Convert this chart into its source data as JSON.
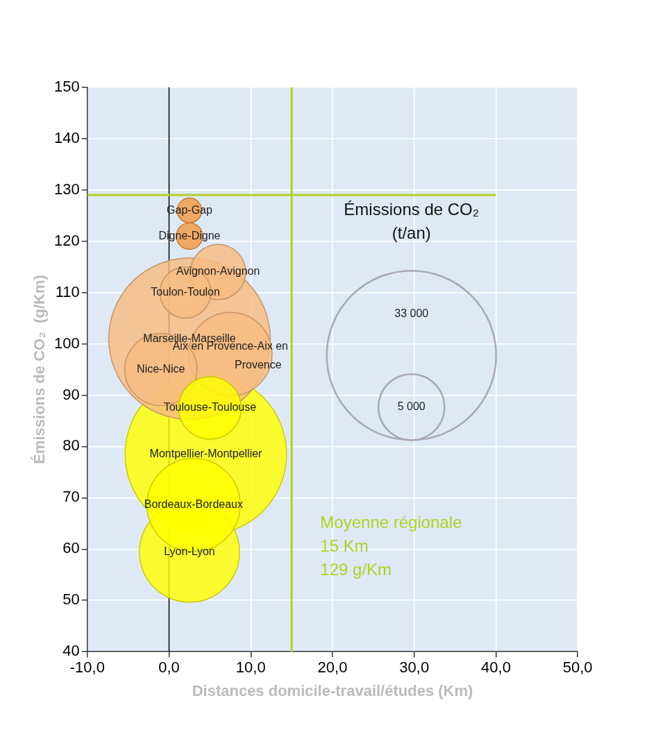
{
  "chart_data": {
    "type": "bubble",
    "xlabel": "Distances domicile-travail/études (Km)",
    "ylabel": "Émissions de CO₂  (g/Km)",
    "legend_title": "Émissions de CO₂\n(t/an)",
    "series": [
      {
        "name": "Gap-Gap",
        "color": "#f39a40",
        "x": [
          2.5
        ],
        "values": [
          126
        ],
        "sizes": [
          700
        ]
      },
      {
        "name": "Digne-Digne",
        "color": "#f39a40",
        "x": [
          2.5
        ],
        "values": [
          121
        ],
        "sizes": [
          800
        ]
      },
      {
        "name": "Avignon-Avignon",
        "color": "#f7bc80",
        "x": [
          6
        ],
        "values": [
          114
        ],
        "sizes": [
          3500
        ]
      },
      {
        "name": "Toulon-Toulon",
        "color": "#f7bc80",
        "x": [
          2
        ],
        "values": [
          110
        ],
        "sizes": [
          3000
        ]
      },
      {
        "name": "Marseille-Marseille",
        "color": "#f7bc80",
        "x": [
          2.5
        ],
        "values": [
          101
        ],
        "sizes": [
          30000
        ]
      },
      {
        "name": "Aix en Provence-Aix en\nProvence",
        "color": "#f7bc80",
        "x": [
          7.5
        ],
        "values": [
          98
        ],
        "sizes": [
          8000
        ]
      },
      {
        "name": "Nice-Nice",
        "color": "#f7bc80",
        "x": [
          -1
        ],
        "values": [
          95
        ],
        "sizes": [
          6000
        ]
      },
      {
        "name": "Toulouse-Toulouse",
        "color": "#ffff00",
        "x": [
          5
        ],
        "values": [
          87.5
        ],
        "sizes": [
          4500
        ]
      },
      {
        "name": "Montpellier-Montpellier",
        "color": "#ffff00",
        "x": [
          4.5
        ],
        "values": [
          78.5
        ],
        "sizes": [
          30000
        ]
      },
      {
        "name": "Bordeaux-Bordeaux",
        "color": "#ffff00",
        "x": [
          3
        ],
        "values": [
          68.6
        ],
        "sizes": [
          10000
        ]
      },
      {
        "name": "Lyon-Lyon",
        "color": "#ffff00",
        "x": [
          2.5
        ],
        "values": [
          59.4
        ],
        "sizes": [
          11500
        ]
      }
    ],
    "size_legend": [
      5000,
      33000
    ],
    "xlim": [
      -10,
      50
    ],
    "xticks": [
      {
        "value": -10,
        "label": "-10,0"
      },
      {
        "value": 0,
        "label": "0,0"
      },
      {
        "value": 10,
        "label": "10,0"
      },
      {
        "value": 20,
        "label": "20,0"
      },
      {
        "value": 30,
        "label": "30,0"
      },
      {
        "value": 40,
        "label": "40,0"
      },
      {
        "value": 50,
        "label": "50,0"
      }
    ],
    "ylim": [
      40,
      150
    ],
    "yticks": [
      40,
      50,
      60,
      70,
      80,
      90,
      100,
      110,
      120,
      130,
      140,
      150
    ],
    "grid": true,
    "ref_lines": [
      {
        "axis": "x",
        "value": 0,
        "color": "#000000"
      },
      {
        "axis": "x",
        "value": 15,
        "color": "#b4d020"
      },
      {
        "axis": "y",
        "value": 129,
        "color": "#b4d020"
      }
    ],
    "annotations": [
      "Moyenne régionale\n15 Km\n129 g/Km"
    ]
  }
}
